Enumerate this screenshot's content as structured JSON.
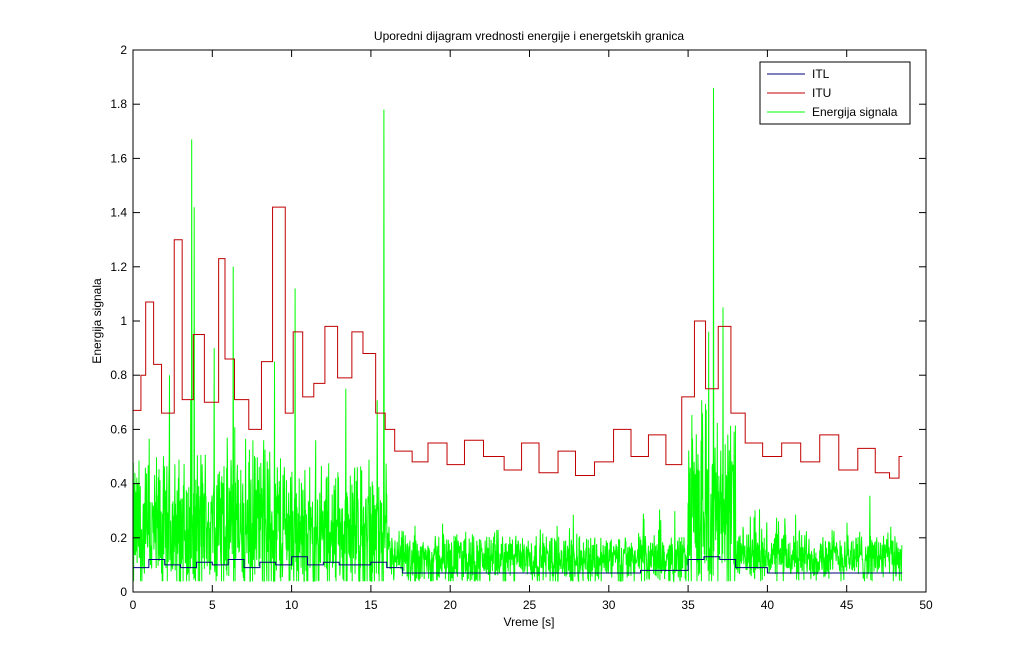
{
  "chart_data": {
    "type": "line",
    "title": "Uporedni dijagram vrednosti energije i energetskih granica",
    "xlabel": "Vreme [s]",
    "ylabel": "Energija signala",
    "xlim": [
      0,
      50
    ],
    "ylim": [
      0,
      2
    ],
    "xticks": [
      "0",
      "5",
      "10",
      "15",
      "20",
      "25",
      "30",
      "35",
      "40",
      "45",
      "50"
    ],
    "yticks": [
      "0",
      "0.2",
      "0.4",
      "0.6",
      "0.8",
      "1",
      "1.2",
      "1.4",
      "1.6",
      "1.8",
      "2"
    ],
    "grid": false,
    "legend_position": "top-right",
    "series": [
      {
        "name": "ITL",
        "color": "#00007f",
        "step": true,
        "x": [
          0,
          1,
          2,
          3,
          4,
          5,
          6,
          7,
          8,
          9,
          10,
          11,
          12,
          13,
          14,
          15,
          16,
          17,
          18,
          19,
          20,
          22,
          24,
          26,
          28,
          30,
          32,
          34,
          35,
          36,
          37,
          38,
          40,
          42,
          44,
          46,
          48.3
        ],
        "y": [
          0.09,
          0.12,
          0.1,
          0.09,
          0.11,
          0.1,
          0.12,
          0.09,
          0.11,
          0.1,
          0.13,
          0.1,
          0.11,
          0.1,
          0.1,
          0.11,
          0.09,
          0.07,
          0.07,
          0.07,
          0.07,
          0.07,
          0.07,
          0.07,
          0.07,
          0.07,
          0.08,
          0.08,
          0.12,
          0.13,
          0.12,
          0.09,
          0.07,
          0.07,
          0.07,
          0.07,
          0.07
        ]
      },
      {
        "name": "ITU",
        "color": "#c00000",
        "step": true,
        "x": [
          0,
          0.5,
          0.8,
          1.3,
          1.8,
          2.6,
          3.1,
          3.8,
          4.5,
          5.4,
          5.8,
          6.4,
          7.3,
          8.1,
          8.8,
          9.6,
          10.1,
          10.7,
          11.4,
          12.1,
          12.9,
          13.8,
          14.5,
          15.3,
          15.9,
          16.5,
          17.6,
          18.6,
          19.8,
          20.9,
          22.1,
          23.4,
          24.5,
          25.6,
          26.8,
          27.9,
          29.1,
          30.3,
          31.4,
          32.5,
          33.6,
          34.6,
          35.4,
          36.1,
          36.9,
          37.7,
          38.6,
          39.7,
          40.9,
          42.1,
          43.3,
          44.5,
          45.7,
          46.8,
          47.7,
          48.3
        ],
        "y": [
          0.67,
          0.8,
          1.07,
          0.84,
          0.66,
          1.3,
          0.71,
          0.95,
          0.7,
          1.23,
          0.86,
          0.71,
          0.6,
          0.85,
          1.42,
          0.66,
          0.96,
          0.72,
          0.77,
          0.98,
          0.79,
          0.96,
          0.88,
          0.66,
          0.6,
          0.52,
          0.48,
          0.55,
          0.47,
          0.56,
          0.5,
          0.45,
          0.55,
          0.44,
          0.52,
          0.43,
          0.48,
          0.6,
          0.5,
          0.58,
          0.47,
          0.72,
          1.0,
          0.75,
          0.98,
          0.66,
          0.55,
          0.5,
          0.55,
          0.48,
          0.58,
          0.45,
          0.53,
          0.44,
          0.42,
          0.5
        ]
      },
      {
        "name": "Energija signala",
        "color": "#00ff00",
        "step": false,
        "segments": [
          {
            "x0": 0,
            "x1": 4,
            "base": 0.22,
            "amp": 0.22
          },
          {
            "x0": 4,
            "x1": 10,
            "base": 0.24,
            "amp": 0.24
          },
          {
            "x0": 10,
            "x1": 16,
            "base": 0.21,
            "amp": 0.2
          },
          {
            "x0": 16,
            "x1": 35,
            "base": 0.12,
            "amp": 0.08
          },
          {
            "x0": 35,
            "x1": 38,
            "base": 0.3,
            "amp": 0.28
          },
          {
            "x0": 38,
            "x1": 48.5,
            "base": 0.13,
            "amp": 0.08
          }
        ],
        "peaks": [
          {
            "x": 3.7,
            "y": 1.67
          },
          {
            "x": 3.85,
            "y": 1.42
          },
          {
            "x": 6.3,
            "y": 1.2
          },
          {
            "x": 10.2,
            "y": 1.12
          },
          {
            "x": 15.8,
            "y": 1.78
          },
          {
            "x": 36.6,
            "y": 1.86
          },
          {
            "x": 36.3,
            "y": 0.96
          },
          {
            "x": 37.2,
            "y": 1.05
          },
          {
            "x": 2.3,
            "y": 0.8
          },
          {
            "x": 5.1,
            "y": 0.9
          },
          {
            "x": 8.9,
            "y": 0.85
          },
          {
            "x": 13.4,
            "y": 0.75
          }
        ]
      }
    ]
  }
}
